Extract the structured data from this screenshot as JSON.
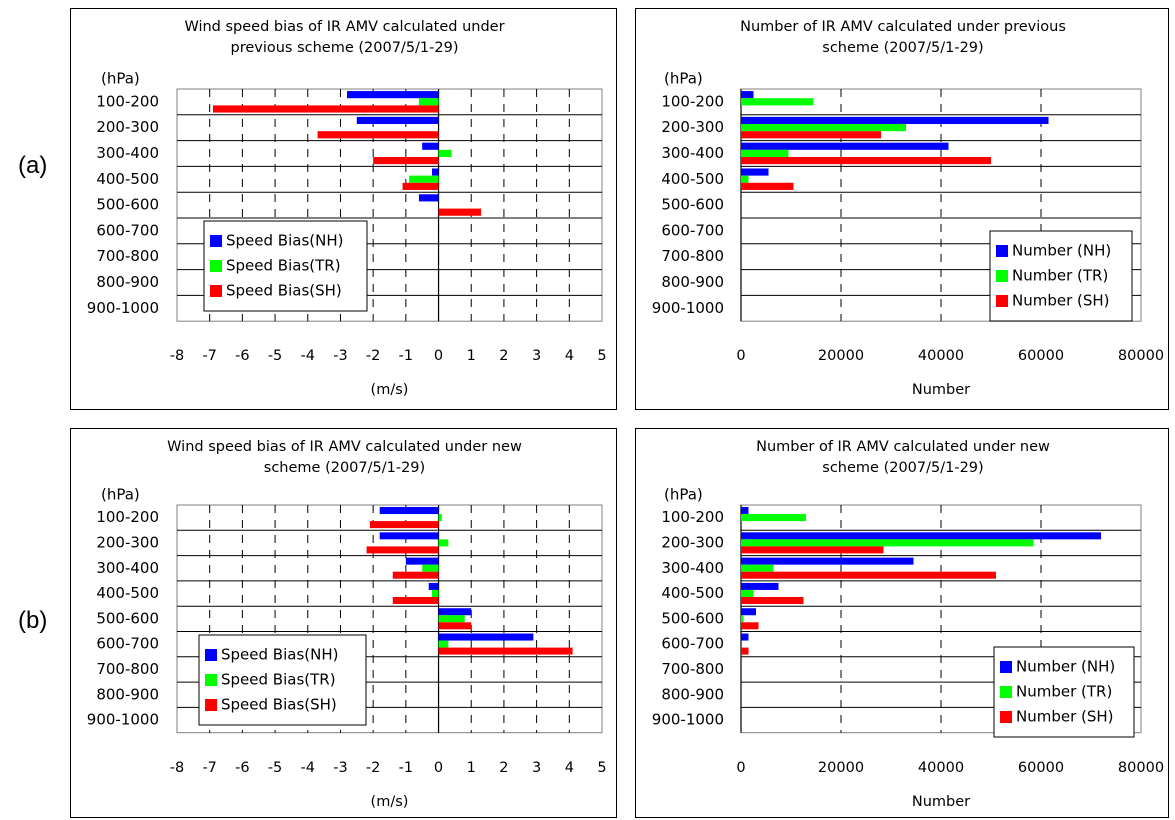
{
  "row_labels": [
    "(a)",
    "(b)"
  ],
  "chart_data": [
    {
      "type": "bar",
      "orientation": "horizontal",
      "title": [
        "Wind speed bias of IR AMV calculated under",
        "previous scheme (2007/5/1-29)"
      ],
      "unit_label": "(hPa)",
      "xlabel": "(m/s)",
      "categories": [
        "100-200",
        "200-300",
        "300-400",
        "400-500",
        "500-600",
        "600-700",
        "700-800",
        "800-900",
        "900-1000"
      ],
      "xlim": [
        -8,
        5
      ],
      "xticks": [
        "-8",
        "-7",
        "-6",
        "-5",
        "-4",
        "-3",
        "-2",
        "-1",
        "0",
        "1",
        "2",
        "3",
        "4",
        "5"
      ],
      "grid": "dashed vertical",
      "legend_position": "bottom-left",
      "series": [
        {
          "name": "Speed Bias(NH)",
          "color": "#0000ff",
          "values": [
            -2.8,
            -2.5,
            -0.5,
            -0.2,
            -0.6,
            null,
            null,
            null,
            null
          ]
        },
        {
          "name": "Speed Bias(TR)",
          "color": "#00ff00",
          "values": [
            -0.6,
            null,
            0.4,
            -0.9,
            null,
            null,
            null,
            null,
            null
          ]
        },
        {
          "name": "Speed Bias(SH)",
          "color": "#ff0000",
          "values": [
            -6.9,
            -3.7,
            -2.0,
            -1.1,
            1.3,
            null,
            null,
            null,
            null
          ]
        }
      ]
    },
    {
      "type": "bar",
      "orientation": "horizontal",
      "title": [
        "Number of IR AMV calculated under previous",
        "scheme (2007/5/1-29)"
      ],
      "unit_label": "(hPa)",
      "xlabel": "Number",
      "categories": [
        "100-200",
        "200-300",
        "300-400",
        "400-500",
        "500-600",
        "600-700",
        "700-800",
        "800-900",
        "900-1000"
      ],
      "xlim": [
        0,
        80000
      ],
      "xticks": [
        "0",
        "20000",
        "40000",
        "60000",
        "80000"
      ],
      "grid": "dashed vertical",
      "legend_position": "bottom-right",
      "series": [
        {
          "name": "Number (NH)",
          "color": "#0000ff",
          "values": [
            2500,
            61500,
            41500,
            5500,
            null,
            null,
            null,
            null,
            null
          ]
        },
        {
          "name": "Number (TR)",
          "color": "#00ff00",
          "values": [
            14500,
            33000,
            9500,
            1500,
            null,
            null,
            null,
            null,
            null
          ]
        },
        {
          "name": "Number (SH)",
          "color": "#ff0000",
          "values": [
            null,
            28000,
            50000,
            10500,
            null,
            null,
            null,
            null,
            null
          ]
        }
      ]
    },
    {
      "type": "bar",
      "orientation": "horizontal",
      "title": [
        "Wind speed bias of IR AMV calculated under new",
        "scheme (2007/5/1-29)"
      ],
      "unit_label": "(hPa)",
      "xlabel": "(m/s)",
      "categories": [
        "100-200",
        "200-300",
        "300-400",
        "400-500",
        "500-600",
        "600-700",
        "700-800",
        "800-900",
        "900-1000"
      ],
      "xlim": [
        -8,
        5
      ],
      "xticks": [
        "-8",
        "-7",
        "-6",
        "-5",
        "-4",
        "-3",
        "-2",
        "-1",
        "0",
        "1",
        "2",
        "3",
        "4",
        "5"
      ],
      "grid": "dashed vertical",
      "legend_position": "bottom-left",
      "series": [
        {
          "name": "Speed Bias(NH)",
          "color": "#0000ff",
          "values": [
            -1.8,
            -1.8,
            -1.0,
            -0.3,
            1.0,
            2.9,
            null,
            null,
            null
          ]
        },
        {
          "name": "Speed Bias(TR)",
          "color": "#00ff00",
          "values": [
            0.1,
            0.3,
            -0.5,
            -0.2,
            0.8,
            0.3,
            null,
            null,
            null
          ]
        },
        {
          "name": "Speed Bias(SH)",
          "color": "#ff0000",
          "values": [
            -2.1,
            -2.2,
            -1.4,
            -1.4,
            1.0,
            4.1,
            null,
            null,
            null
          ]
        }
      ]
    },
    {
      "type": "bar",
      "orientation": "horizontal",
      "title": [
        "Number of IR AMV calculated under new",
        "scheme (2007/5/1-29)"
      ],
      "unit_label": "(hPa)",
      "xlabel": "Number",
      "categories": [
        "100-200",
        "200-300",
        "300-400",
        "400-500",
        "500-600",
        "600-700",
        "700-800",
        "800-900",
        "900-1000"
      ],
      "xlim": [
        0,
        80000
      ],
      "xticks": [
        "0",
        "20000",
        "40000",
        "60000",
        "80000"
      ],
      "grid": "dashed vertical",
      "legend_position": "bottom-right",
      "series": [
        {
          "name": "Number (NH)",
          "color": "#0000ff",
          "values": [
            1500,
            72000,
            34500,
            7500,
            3000,
            1500,
            null,
            null,
            null
          ]
        },
        {
          "name": "Number (TR)",
          "color": "#00ff00",
          "values": [
            13000,
            58500,
            6500,
            2500,
            500,
            null,
            null,
            null,
            null
          ]
        },
        {
          "name": "Number (SH)",
          "color": "#ff0000",
          "values": [
            null,
            28500,
            51000,
            12500,
            3500,
            1500,
            null,
            null,
            null
          ]
        }
      ]
    }
  ]
}
